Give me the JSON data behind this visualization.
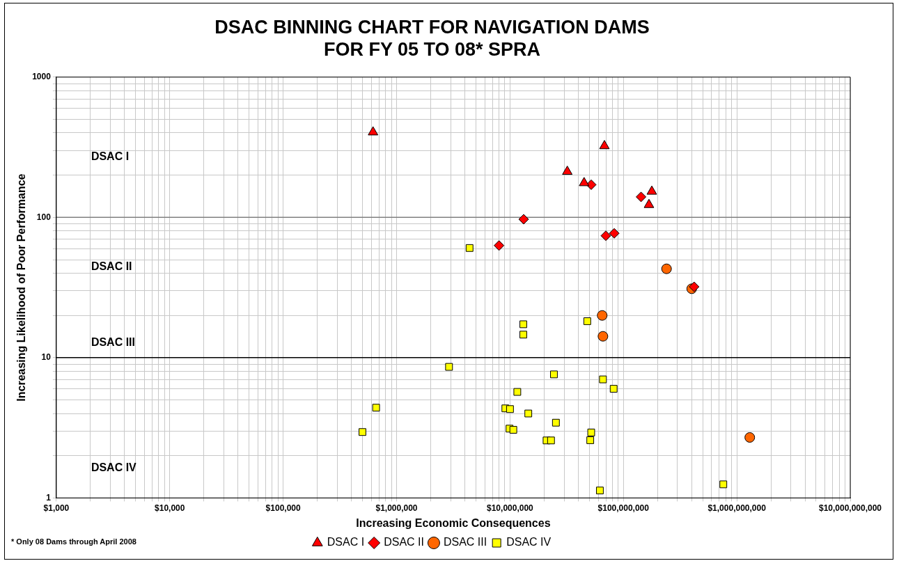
{
  "chart_data": {
    "type": "scatter",
    "title": "DSAC BINNING CHART FOR NAVIGATION DAMS\nFOR FY 05 TO 08* SPRA",
    "xlabel": "Increasing Economic Consequences",
    "ylabel": "Increasing Likelihood of Poor Performance",
    "log": "xy",
    "grid": true,
    "legend": "bottom",
    "xlim": [
      1000,
      10000000000
    ],
    "xticks": [
      {
        "value": 1000,
        "label": "$1,000"
      },
      {
        "value": 10000,
        "label": "$10,000"
      },
      {
        "value": 100000,
        "label": "$100,000"
      },
      {
        "value": 1000000,
        "label": "$1,000,000"
      },
      {
        "value": 10000000,
        "label": "$10,000,000"
      },
      {
        "value": 100000000,
        "label": "$100,000,000"
      },
      {
        "value": 1000000000,
        "label": "$1,000,000,000"
      },
      {
        "value": 10000000000,
        "label": "$10,000,000,000"
      }
    ],
    "ylim": [
      1,
      1000
    ],
    "yticks": [
      1,
      10,
      100,
      1000
    ],
    "ref_lines": [
      {
        "axis": "y",
        "value": 100,
        "color": "#808080"
      },
      {
        "axis": "y",
        "value": 10,
        "color": "#000000"
      }
    ],
    "annotations": [
      "DSAC I",
      "DSAC II",
      "DSAC III",
      "DSAC IV",
      "* Only 08 Dams through April 2008"
    ],
    "series": [
      {
        "name": "DSAC I",
        "color": "#ff0000",
        "marker": "triangle",
        "x": [
          620000,
          68000000,
          32000000,
          45000000,
          178000000,
          168000000
        ],
        "values": [
          405,
          323,
          212,
          176,
          153,
          123
        ]
      },
      {
        "name": "DSAC II",
        "color": "#ff0000",
        "marker": "diamond",
        "x": [
          52000000,
          143000000,
          13200000,
          8000000,
          70000000,
          83000000,
          420000000
        ],
        "values": [
          171,
          140,
          97,
          63,
          74,
          77,
          32
        ]
      },
      {
        "name": "DSAC III",
        "color": "#ff6600",
        "marker": "circle",
        "x": [
          240000000,
          400000000,
          65000000,
          66000000,
          1300000000
        ],
        "values": [
          43,
          31,
          20,
          14.2,
          2.7
        ]
      },
      {
        "name": "DSAC IV",
        "color": "#ffff00",
        "marker": "square",
        "x": [
          4400000,
          2900000,
          660000,
          500000,
          13100000,
          13100000,
          48000000,
          24400000,
          66000000,
          82000000,
          11600000,
          9100000,
          10000000,
          14500000,
          25400000,
          9900000,
          10700000,
          52000000,
          51000000,
          21000000,
          23000000,
          62000000,
          760000000
        ],
        "values": [
          60.5,
          8.6,
          4.4,
          2.95,
          17.3,
          14.6,
          18.2,
          7.6,
          7.0,
          6.0,
          5.7,
          4.35,
          4.3,
          4.0,
          3.44,
          3.12,
          3.06,
          2.93,
          2.58,
          2.57,
          2.57,
          1.13,
          1.25
        ]
      }
    ]
  }
}
